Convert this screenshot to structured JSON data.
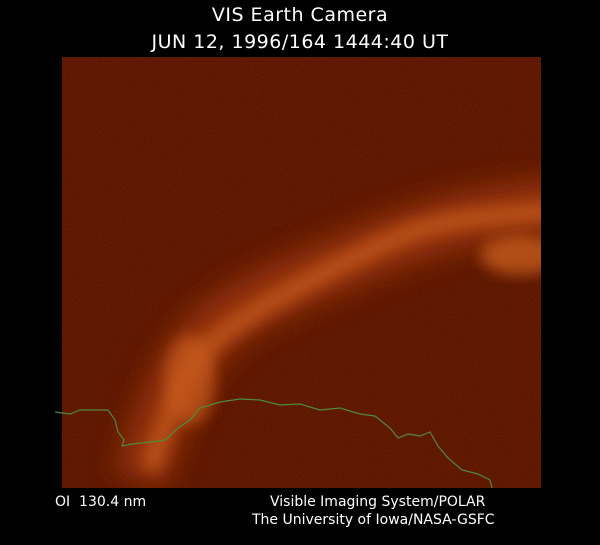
{
  "header": {
    "title": "VIS Earth Camera",
    "subtitle": "JUN 12, 1996/164 1444:40 UT"
  },
  "footer": {
    "filter": "OI  130.4 nm",
    "credit": [
      "Visible Imaging System/POLAR",
      "The University of Iowa/NASA-GSFC"
    ]
  }
}
